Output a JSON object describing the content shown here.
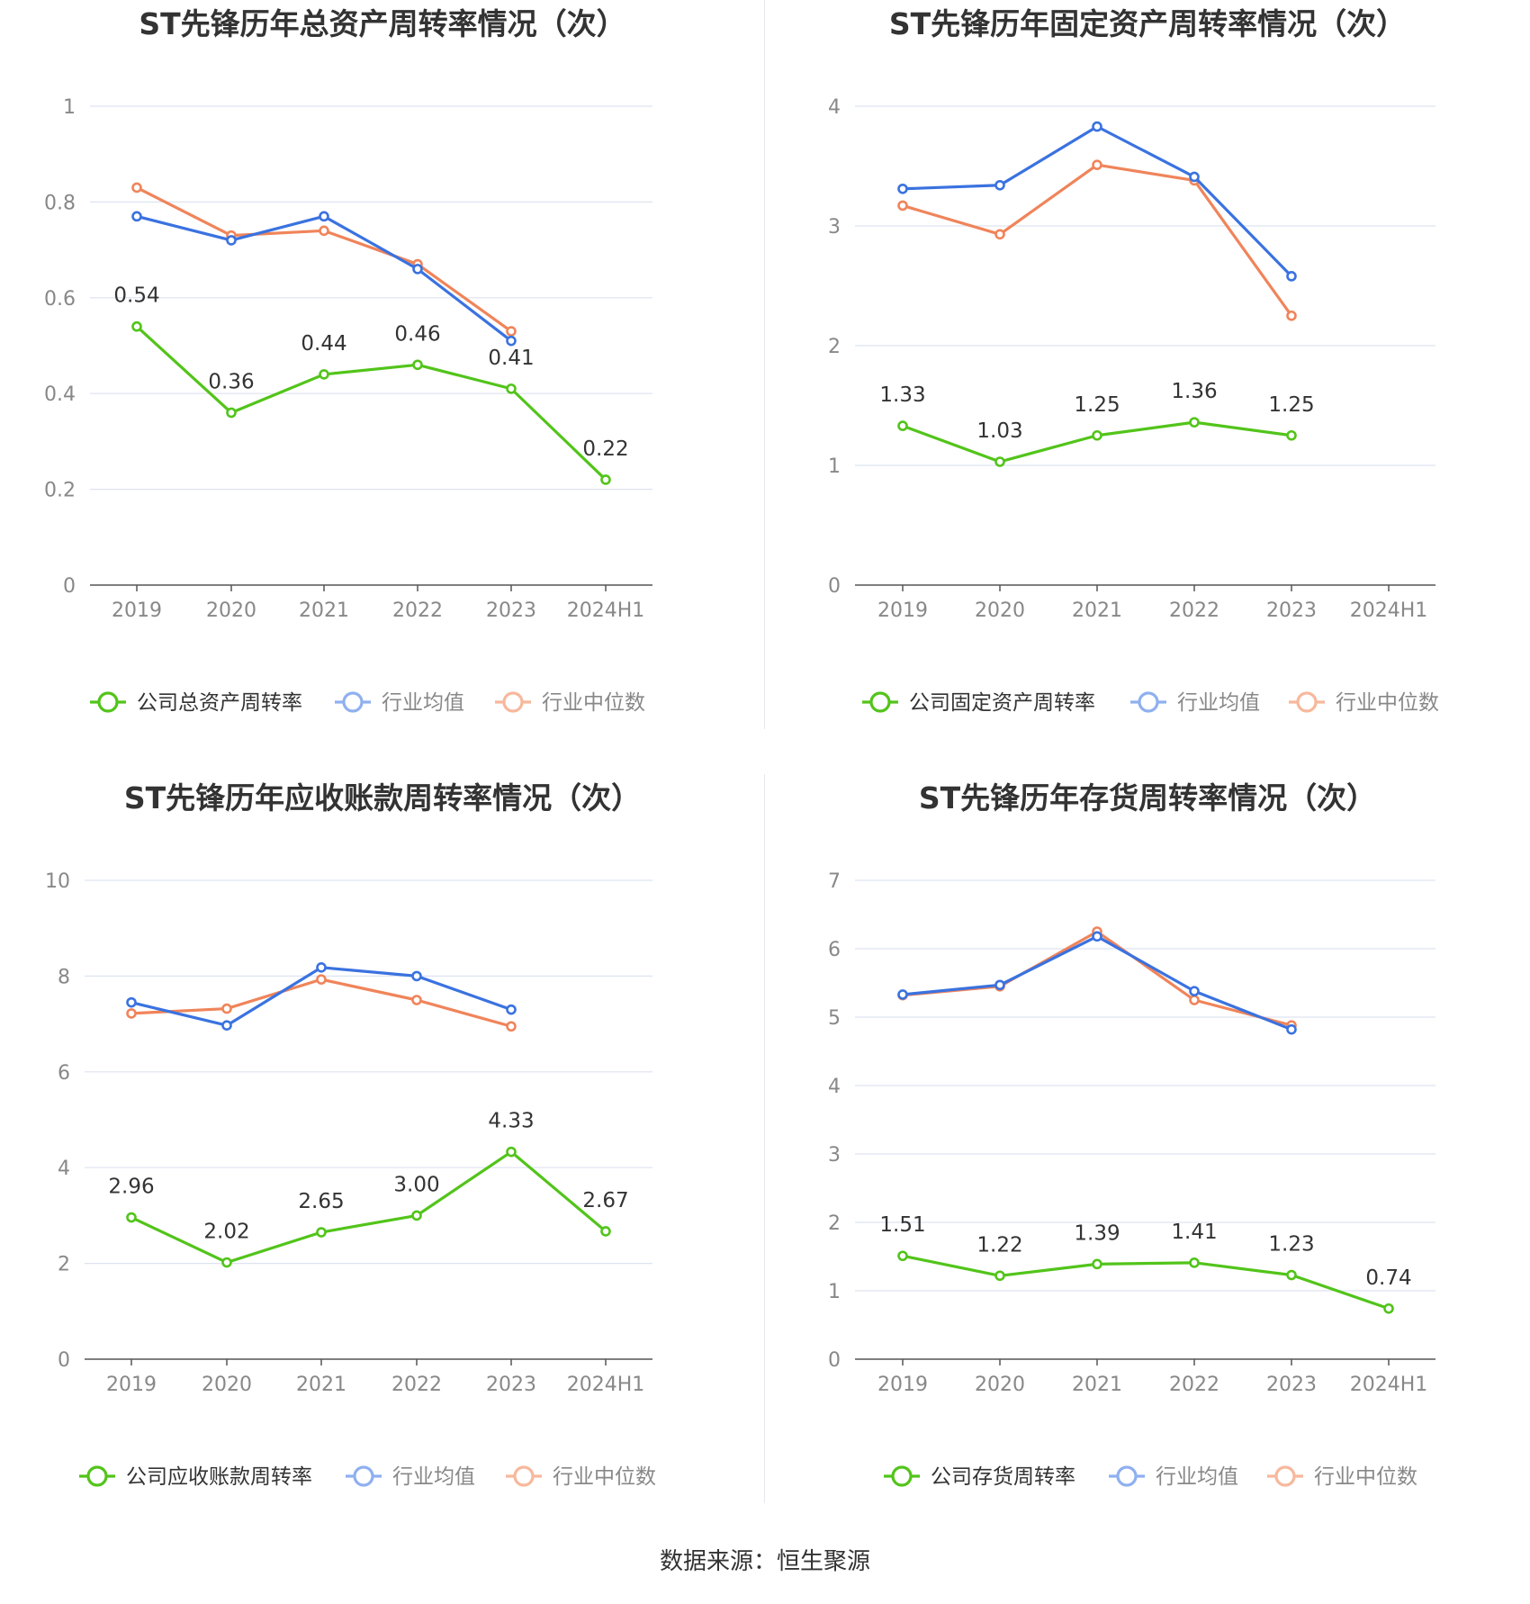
{
  "source_text": "数据来源：恒生聚源",
  "colors": {
    "company": "#52c41a",
    "avg": "#3a72e0",
    "median": "#f0845a",
    "grid": "#dde3f0",
    "axis": "#555555",
    "tick_text": "#888888",
    "title_text": "#333333",
    "legend_avg": "#8fb0f0",
    "legend_median": "#f7b89c"
  },
  "chart_data": [
    {
      "type": "line",
      "title": "ST先锋历年总资产周转率情况（次）",
      "categories": [
        "2019",
        "2020",
        "2021",
        "2022",
        "2023",
        "2024H1"
      ],
      "ylim": [
        0,
        1
      ],
      "yticks": [
        "0",
        "0.2",
        "0.4",
        "0.6",
        "0.8",
        "1"
      ],
      "ytick_values": [
        0,
        0.2,
        0.4,
        0.6,
        0.8,
        1
      ],
      "series": [
        {
          "name": "公司总资产周转率",
          "role": "company",
          "values": [
            0.54,
            0.36,
            0.44,
            0.46,
            0.41,
            0.22
          ],
          "labels": [
            "0.54",
            "0.36",
            "0.44",
            "0.46",
            "0.41",
            "0.22"
          ]
        },
        {
          "name": "行业均值",
          "role": "avg",
          "values": [
            0.77,
            0.72,
            0.77,
            0.66,
            0.51,
            null
          ]
        },
        {
          "name": "行业中位数",
          "role": "median",
          "values": [
            0.83,
            0.73,
            0.74,
            0.67,
            0.53,
            null
          ]
        }
      ]
    },
    {
      "type": "line",
      "title": "ST先锋历年固定资产周转率情况（次）",
      "categories": [
        "2019",
        "2020",
        "2021",
        "2022",
        "2023",
        "2024H1"
      ],
      "ylim": [
        0,
        4
      ],
      "yticks": [
        "0",
        "1",
        "2",
        "3",
        "4"
      ],
      "ytick_values": [
        0,
        1,
        2,
        3,
        4
      ],
      "series": [
        {
          "name": "公司固定资产周转率",
          "role": "company",
          "values": [
            1.33,
            1.03,
            1.25,
            1.36,
            1.25,
            null
          ],
          "labels": [
            "1.33",
            "1.03",
            "1.25",
            "1.36",
            "1.25",
            ""
          ]
        },
        {
          "name": "行业均值",
          "role": "avg",
          "values": [
            3.31,
            3.34,
            3.83,
            3.41,
            2.58,
            null
          ]
        },
        {
          "name": "行业中位数",
          "role": "median",
          "values": [
            3.17,
            2.93,
            3.51,
            3.38,
            2.25,
            null
          ]
        }
      ]
    },
    {
      "type": "line",
      "title": "ST先锋历年应收账款周转率情况（次）",
      "categories": [
        "2019",
        "2020",
        "2021",
        "2022",
        "2023",
        "2024H1"
      ],
      "ylim": [
        0,
        10
      ],
      "yticks": [
        "0",
        "2",
        "4",
        "6",
        "8",
        "10"
      ],
      "ytick_values": [
        0,
        2,
        4,
        6,
        8,
        10
      ],
      "series": [
        {
          "name": "公司应收账款周转率",
          "role": "company",
          "values": [
            2.96,
            2.02,
            2.65,
            3.0,
            4.33,
            2.67
          ],
          "labels": [
            "2.96",
            "2.02",
            "2.65",
            "3.00",
            "4.33",
            "2.67"
          ]
        },
        {
          "name": "行业均值",
          "role": "avg",
          "values": [
            7.45,
            6.97,
            8.18,
            8.0,
            7.3,
            null
          ]
        },
        {
          "name": "行业中位数",
          "role": "median",
          "values": [
            7.22,
            7.32,
            7.93,
            7.5,
            6.95,
            null
          ]
        }
      ]
    },
    {
      "type": "line",
      "title": "ST先锋历年存货周转率情况（次）",
      "categories": [
        "2019",
        "2020",
        "2021",
        "2022",
        "2023",
        "2024H1"
      ],
      "ylim": [
        0,
        7
      ],
      "yticks": [
        "0",
        "1",
        "2",
        "3",
        "4",
        "5",
        "6",
        "7"
      ],
      "ytick_values": [
        0,
        1,
        2,
        3,
        4,
        5,
        6,
        7
      ],
      "series": [
        {
          "name": "公司存货周转率",
          "role": "company",
          "values": [
            1.51,
            1.22,
            1.39,
            1.41,
            1.23,
            0.74
          ],
          "labels": [
            "1.51",
            "1.22",
            "1.39",
            "1.41",
            "1.23",
            "0.74"
          ]
        },
        {
          "name": "行业均值",
          "role": "avg",
          "values": [
            5.33,
            5.47,
            6.18,
            5.38,
            4.82,
            null
          ]
        },
        {
          "name": "行业中位数",
          "role": "median",
          "values": [
            5.32,
            5.45,
            6.25,
            5.25,
            4.88,
            null
          ]
        }
      ]
    }
  ]
}
